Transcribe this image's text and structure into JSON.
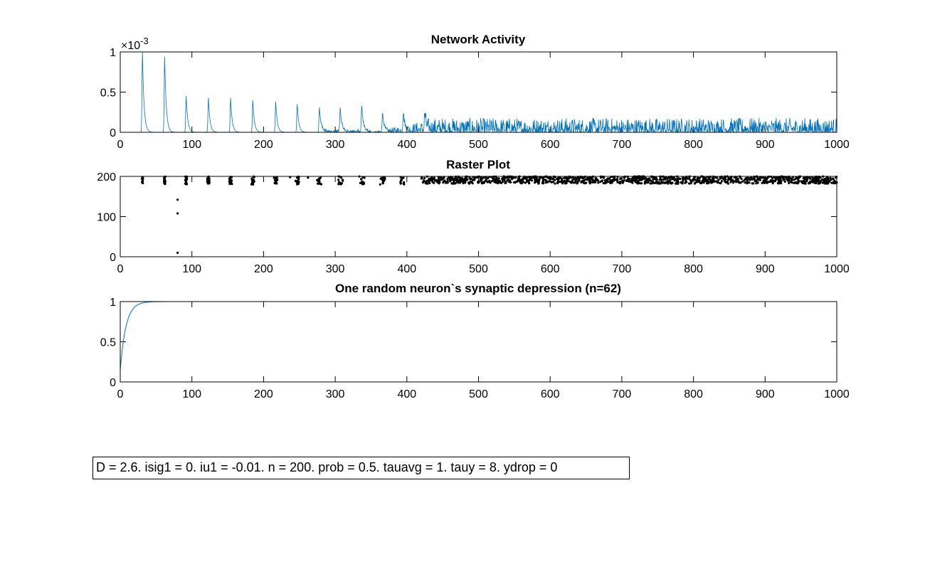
{
  "chart_data": [
    {
      "type": "line",
      "title": "Network Activity",
      "xlabel": "",
      "ylabel": "",
      "xlim": [
        0,
        1000
      ],
      "ylim": [
        0,
        0.001
      ],
      "xticks": [
        "0",
        "100",
        "200",
        "300",
        "400",
        "500",
        "600",
        "700",
        "800",
        "900",
        "1000"
      ],
      "yticks": [
        "0",
        "0.5",
        "1"
      ],
      "y_exponent": "×10",
      "y_exponent_power": "-3",
      "color": "#0072BD",
      "peaks": [
        {
          "x": 31,
          "y": 0.001
        },
        {
          "x": 62,
          "y": 0.00094
        },
        {
          "x": 92,
          "y": 0.00045
        },
        {
          "x": 123,
          "y": 0.00043
        },
        {
          "x": 154,
          "y": 0.00043
        },
        {
          "x": 185,
          "y": 0.0004
        },
        {
          "x": 217,
          "y": 0.00038
        },
        {
          "x": 247,
          "y": 0.00035
        },
        {
          "x": 278,
          "y": 0.00031
        },
        {
          "x": 307,
          "y": 0.00029
        },
        {
          "x": 337,
          "y": 0.00031
        },
        {
          "x": 366,
          "y": 0.00024
        },
        {
          "x": 395,
          "y": 0.00022
        },
        {
          "x": 425,
          "y": 0.0002
        }
      ],
      "steady_state": {
        "x_start": 440,
        "x_end": 1000,
        "mean": 7e-05,
        "max": 0.00018
      }
    },
    {
      "type": "scatter",
      "title": "Raster Plot",
      "xlabel": "",
      "ylabel": "",
      "xlim": [
        0,
        1000
      ],
      "ylim": [
        0,
        200
      ],
      "xticks": [
        "0",
        "100",
        "200",
        "300",
        "400",
        "500",
        "600",
        "700",
        "800",
        "900",
        "1000"
      ],
      "yticks": [
        "0",
        "100",
        "200"
      ],
      "color": "#000000",
      "burst_times": [
        31,
        62,
        92,
        123,
        154,
        185,
        217,
        247,
        278,
        307,
        337,
        366,
        395,
        425
      ],
      "burst_neuron_range": [
        180,
        200
      ],
      "isolated_spikes": [
        {
          "x": 80,
          "y": 142
        },
        {
          "x": 80,
          "y": 108
        },
        {
          "x": 80,
          "y": 10
        },
        {
          "x": 237,
          "y": 198
        },
        {
          "x": 262,
          "y": 197
        }
      ],
      "steady_state": {
        "x_start": 430,
        "x_end": 1000,
        "neuron_range": [
          182,
          200
        ]
      }
    },
    {
      "type": "line",
      "title": "One random neuron`s synaptic depression (n=62)",
      "xlabel": "",
      "ylabel": "",
      "xlim": [
        0,
        1000
      ],
      "ylim": [
        0,
        1
      ],
      "xticks": [
        "0",
        "100",
        "200",
        "300",
        "400",
        "500",
        "600",
        "700",
        "800",
        "900",
        "1000"
      ],
      "yticks": [
        "0",
        "0.5",
        "1"
      ],
      "color": "#0072BD",
      "curve": {
        "y0": 0.15,
        "y_inf": 1.0,
        "tau": 8
      }
    }
  ],
  "annotation": "D = 2.6. isig1 = 0. iu1 = -0.01. n = 200. prob = 0.5. tauavg = 1. tauy = 8. ydrop = 0"
}
